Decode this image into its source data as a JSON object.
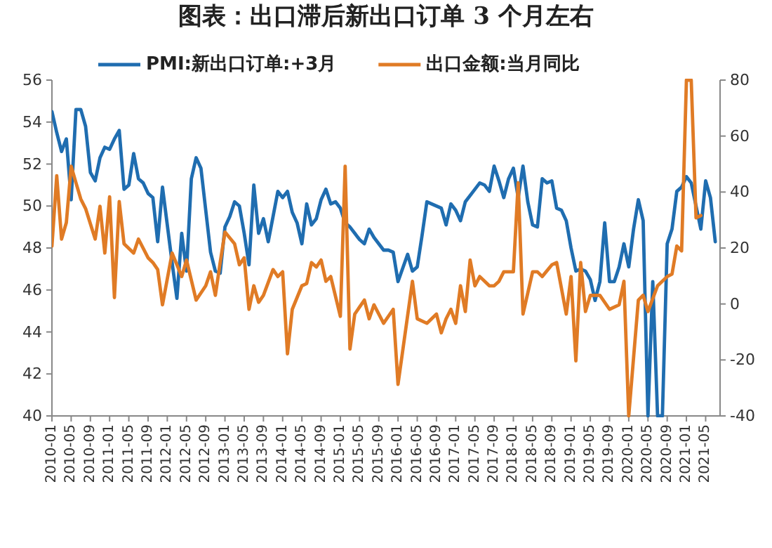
{
  "chart_data": {
    "type": "line",
    "title": "图表：出口滞后新出口订单 3 个月左右",
    "legend": "top",
    "xlim": [
      "2010-01",
      "2021-08"
    ],
    "xticks": [
      "2010-01",
      "2010-05",
      "2010-09",
      "2011-01",
      "2011-05",
      "2011-09",
      "2012-01",
      "2012-05",
      "2012-09",
      "2013-01",
      "2013-05",
      "2013-09",
      "2014-01",
      "2014-05",
      "2014-09",
      "2015-01",
      "2015-05",
      "2015-09",
      "2016-01",
      "2016-05",
      "2016-09",
      "2017-01",
      "2017-05",
      "2017-09",
      "2018-01",
      "2018-05",
      "2018-09",
      "2019-01",
      "2019-05",
      "2019-09",
      "2020-01",
      "2020-05",
      "2020-09",
      "2021-01",
      "2021-05"
    ],
    "ylim": [
      40,
      56
    ],
    "yticks": [
      40,
      42,
      44,
      46,
      48,
      50,
      52,
      54,
      56
    ],
    "y2lim": [
      -40,
      80
    ],
    "y2ticks": [
      -40,
      -20,
      0,
      20,
      40,
      60,
      80
    ],
    "series": [
      {
        "name": "PMI:新出口订单:+3月",
        "color": "#1f6db0",
        "axis": "y",
        "x": [
          "2010-01",
          "2010-02",
          "2010-03",
          "2010-04",
          "2010-05",
          "2010-06",
          "2010-07",
          "2010-08",
          "2010-09",
          "2010-10",
          "2010-11",
          "2010-12",
          "2011-01",
          "2011-02",
          "2011-03",
          "2011-04",
          "2011-05",
          "2011-06",
          "2011-07",
          "2011-08",
          "2011-09",
          "2011-10",
          "2011-11",
          "2011-12",
          "2012-02",
          "2012-03",
          "2012-04",
          "2012-05",
          "2012-06",
          "2012-07",
          "2012-08",
          "2012-09",
          "2012-10",
          "2012-11",
          "2012-12",
          "2013-01",
          "2013-02",
          "2013-03",
          "2013-04",
          "2013-05",
          "2013-06",
          "2013-07",
          "2013-08",
          "2013-09",
          "2013-10",
          "2013-11",
          "2013-12",
          "2014-01",
          "2014-02",
          "2014-03",
          "2014-04",
          "2014-05",
          "2014-06",
          "2014-07",
          "2014-08",
          "2014-09",
          "2014-10",
          "2014-11",
          "2014-12",
          "2015-01",
          "2015-02",
          "2015-03",
          "2015-04",
          "2015-05",
          "2015-06",
          "2015-07",
          "2015-08",
          "2015-09",
          "2015-10",
          "2015-11",
          "2015-12",
          "2016-01",
          "2016-03",
          "2016-04",
          "2016-05",
          "2016-06",
          "2016-07",
          "2016-08",
          "2016-10",
          "2016-11",
          "2016-12",
          "2017-01",
          "2017-02",
          "2017-03",
          "2017-05",
          "2017-06",
          "2017-07",
          "2017-08",
          "2017-09",
          "2017-10",
          "2017-11",
          "2017-12",
          "2018-01",
          "2018-02",
          "2018-03",
          "2018-04",
          "2018-05",
          "2018-06",
          "2018-07",
          "2018-08",
          "2018-09",
          "2018-10",
          "2018-11",
          "2018-12",
          "2019-01",
          "2019-02",
          "2019-03",
          "2019-04",
          "2019-05",
          "2019-06",
          "2019-07",
          "2019-08",
          "2019-09",
          "2019-10",
          "2019-11",
          "2019-12",
          "2020-01",
          "2020-02",
          "2020-03",
          "2020-04",
          "2020-05",
          "2020-06",
          "2020-07",
          "2020-08",
          "2020-09",
          "2020-10",
          "2020-11",
          "2020-12",
          "2021-01",
          "2021-02",
          "2021-03",
          "2021-04",
          "2021-05",
          "2021-06",
          "2021-07"
        ],
        "values": [
          54.5,
          53.5,
          52.6,
          53.2,
          50.3,
          54.6,
          54.6,
          53.8,
          51.6,
          51.2,
          52.3,
          52.8,
          52.7,
          53.2,
          53.6,
          50.8,
          51.0,
          52.5,
          51.3,
          51.1,
          50.6,
          50.4,
          48.3,
          50.9,
          47.3,
          45.6,
          48.7,
          46.9,
          51.3,
          52.3,
          51.8,
          49.8,
          47.8,
          46.9,
          46.8,
          49.0,
          49.5,
          50.2,
          50.0,
          48.7,
          47.2,
          51.0,
          48.7,
          49.4,
          48.3,
          49.5,
          50.7,
          50.4,
          50.7,
          49.7,
          49.2,
          48.2,
          50.1,
          49.1,
          49.4,
          50.3,
          50.8,
          50.1,
          50.2,
          49.9,
          49.2,
          49.0,
          48.7,
          48.4,
          48.2,
          48.9,
          48.5,
          48.2,
          47.9,
          47.9,
          47.8,
          46.4,
          47.7,
          46.9,
          47.1,
          48.6,
          50.2,
          50.1,
          49.9,
          49.1,
          50.1,
          49.8,
          49.3,
          50.2,
          50.8,
          51.1,
          51.0,
          50.7,
          51.9,
          51.2,
          50.4,
          51.3,
          51.8,
          50.4,
          51.9,
          50.2,
          49.1,
          49.0,
          51.3,
          51.1,
          51.2,
          49.9,
          49.8,
          49.3,
          48.0,
          46.9,
          47.0,
          46.9,
          46.5,
          45.5,
          46.4,
          49.2,
          46.4,
          46.4,
          47.1,
          48.2,
          47.1,
          48.9,
          50.3,
          49.3,
          40,
          46.4,
          40,
          40,
          48.2,
          48.9,
          50.7,
          50.9,
          51.4,
          51.1,
          50.0,
          48.9,
          51.2,
          50.4,
          48.3
        ]
      },
      {
        "name": "出口金额:当月同比",
        "color": "#e07b25",
        "axis": "y2",
        "x": [
          "2010-01",
          "2010-02",
          "2010-03",
          "2010-04",
          "2010-05",
          "2010-06",
          "2010-07",
          "2010-08",
          "2010-10",
          "2010-11",
          "2010-12",
          "2011-01",
          "2011-02",
          "2011-03",
          "2011-04",
          "2011-06",
          "2011-07",
          "2011-09",
          "2011-10",
          "2011-11",
          "2011-12",
          "2012-02",
          "2012-04",
          "2012-05",
          "2012-07",
          "2012-09",
          "2012-10",
          "2012-11",
          "2012-12",
          "2013-01",
          "2013-03",
          "2013-04",
          "2013-05",
          "2013-06",
          "2013-07",
          "2013-08",
          "2013-09",
          "2013-11",
          "2013-12",
          "2014-01",
          "2014-02",
          "2014-03",
          "2014-05",
          "2014-06",
          "2014-07",
          "2014-08",
          "2014-09",
          "2014-10",
          "2014-11",
          "2015-01",
          "2015-02",
          "2015-03",
          "2015-04",
          "2015-06",
          "2015-07",
          "2015-08",
          "2015-10",
          "2015-12",
          "2016-01",
          "2016-04",
          "2016-05",
          "2016-07",
          "2016-09",
          "2016-10",
          "2016-11",
          "2016-12",
          "2017-01",
          "2017-02",
          "2017-03",
          "2017-04",
          "2017-05",
          "2017-06",
          "2017-08",
          "2017-09",
          "2017-10",
          "2017-11",
          "2018-01",
          "2018-02",
          "2018-03",
          "2018-05",
          "2018-06",
          "2018-07",
          "2018-09",
          "2018-10",
          "2018-12",
          "2019-01",
          "2019-02",
          "2019-03",
          "2019-04",
          "2019-05",
          "2019-07",
          "2019-09",
          "2019-11",
          "2019-12",
          "2020-01",
          "2020-03",
          "2020-04",
          "2020-05",
          "2020-07",
          "2020-09",
          "2020-10",
          "2020-11",
          "2020-12",
          "2021-01",
          "2021-02",
          "2021-03",
          "2021-04"
        ],
        "values": [
          20.7,
          45.8,
          23.2,
          29.1,
          49.2,
          43.3,
          37.5,
          34.1,
          23.2,
          34.9,
          18.2,
          38.3,
          2.3,
          36.6,
          21.5,
          18.2,
          23.2,
          16.5,
          14.8,
          12.3,
          -0.3,
          18.2,
          9.8,
          15.7,
          1.4,
          6.5,
          11.5,
          3.1,
          14.8,
          25.7,
          21.5,
          14.0,
          16.5,
          -1.9,
          6.5,
          0.6,
          3.1,
          12.3,
          9.8,
          11.5,
          -17.8,
          -1.9,
          6.5,
          7.3,
          14.8,
          13.2,
          15.7,
          8.1,
          9.8,
          -4.4,
          49.2,
          -16.1,
          -3.6,
          1.4,
          -5.3,
          -0.3,
          -6.9,
          -1.9,
          -28.7,
          8.1,
          -5.3,
          -6.9,
          -3.6,
          -10.3,
          -5.3,
          -1.9,
          -6.9,
          6.5,
          -2.7,
          15.7,
          6.5,
          9.8,
          6.5,
          6.5,
          8.1,
          11.5,
          11.5,
          43.3,
          -3.6,
          11.5,
          11.5,
          9.8,
          14.0,
          14.8,
          -3.6,
          9.8,
          -20.3,
          14.8,
          -2.7,
          3.1,
          3.1,
          -1.9,
          -0.3,
          8.1,
          -40,
          1.4,
          3.1,
          -2.7,
          6.5,
          9.8,
          10.7,
          20.7,
          19.0,
          80,
          80,
          30.8,
          31.6
        ]
      }
    ]
  }
}
